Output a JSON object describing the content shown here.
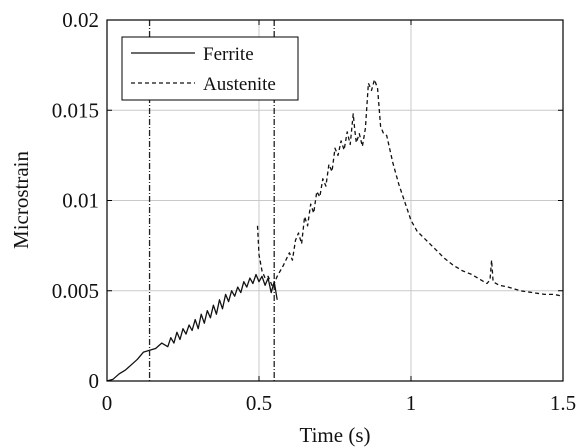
{
  "chart_data": {
    "type": "line",
    "xlabel": "Time (s)",
    "ylabel": "Microstrain",
    "xlim": [
      0,
      1.5
    ],
    "ylim": [
      0,
      0.02
    ],
    "x_ticks": [
      0,
      0.5,
      1,
      1.5
    ],
    "x_tick_labels": [
      "0",
      "0.5",
      "1",
      "1.5"
    ],
    "y_ticks": [
      0,
      0.005,
      0.01,
      0.015,
      0.02
    ],
    "y_tick_labels": [
      "0",
      "0.005",
      "0.01",
      "0.015",
      "0.02"
    ],
    "grid": "vertical at x-ticks, horizontal at y-ticks",
    "legend_position": "top-left",
    "vertical_markers": [
      0.14,
      0.55
    ],
    "series": [
      {
        "name": "Ferrite",
        "style": "solid",
        "points": [
          [
            0.0,
            0.0
          ],
          [
            0.02,
            0.0001
          ],
          [
            0.04,
            0.0004
          ],
          [
            0.06,
            0.0006
          ],
          [
            0.08,
            0.0009
          ],
          [
            0.1,
            0.0012
          ],
          [
            0.12,
            0.0016
          ],
          [
            0.14,
            0.0017
          ],
          [
            0.16,
            0.0018
          ],
          [
            0.18,
            0.0021
          ],
          [
            0.2,
            0.0019
          ],
          [
            0.21,
            0.0024
          ],
          [
            0.22,
            0.0021
          ],
          [
            0.23,
            0.0027
          ],
          [
            0.24,
            0.0023
          ],
          [
            0.25,
            0.0029
          ],
          [
            0.26,
            0.0026
          ],
          [
            0.27,
            0.0031
          ],
          [
            0.28,
            0.0028
          ],
          [
            0.29,
            0.0034
          ],
          [
            0.3,
            0.0029
          ],
          [
            0.31,
            0.0037
          ],
          [
            0.32,
            0.0032
          ],
          [
            0.33,
            0.0039
          ],
          [
            0.34,
            0.0035
          ],
          [
            0.35,
            0.0042
          ],
          [
            0.36,
            0.0037
          ],
          [
            0.37,
            0.0045
          ],
          [
            0.38,
            0.004
          ],
          [
            0.39,
            0.0048
          ],
          [
            0.4,
            0.0044
          ],
          [
            0.41,
            0.005
          ],
          [
            0.42,
            0.0047
          ],
          [
            0.43,
            0.0052
          ],
          [
            0.44,
            0.0049
          ],
          [
            0.45,
            0.0055
          ],
          [
            0.46,
            0.0052
          ],
          [
            0.47,
            0.0057
          ],
          [
            0.48,
            0.0054
          ],
          [
            0.49,
            0.0059
          ],
          [
            0.5,
            0.0055
          ],
          [
            0.51,
            0.0058
          ],
          [
            0.52,
            0.0053
          ],
          [
            0.53,
            0.0057
          ],
          [
            0.54,
            0.0049
          ],
          [
            0.55,
            0.0055
          ],
          [
            0.56,
            0.0045
          ]
        ]
      },
      {
        "name": "Austenite",
        "style": "dashed",
        "points": [
          [
            0.495,
            0.0086
          ],
          [
            0.5,
            0.007
          ],
          [
            0.51,
            0.0061
          ],
          [
            0.52,
            0.0057
          ],
          [
            0.53,
            0.0058
          ],
          [
            0.545,
            0.0052
          ],
          [
            0.56,
            0.0058
          ],
          [
            0.58,
            0.0064
          ],
          [
            0.6,
            0.0071
          ],
          [
            0.61,
            0.0067
          ],
          [
            0.62,
            0.0078
          ],
          [
            0.63,
            0.0082
          ],
          [
            0.64,
            0.0076
          ],
          [
            0.65,
            0.0091
          ],
          [
            0.66,
            0.0086
          ],
          [
            0.67,
            0.0098
          ],
          [
            0.68,
            0.0093
          ],
          [
            0.69,
            0.0105
          ],
          [
            0.7,
            0.0102
          ],
          [
            0.71,
            0.0112
          ],
          [
            0.72,
            0.0108
          ],
          [
            0.73,
            0.012
          ],
          [
            0.74,
            0.0116
          ],
          [
            0.75,
            0.0129
          ],
          [
            0.76,
            0.0125
          ],
          [
            0.77,
            0.0133
          ],
          [
            0.78,
            0.0128
          ],
          [
            0.79,
            0.0138
          ],
          [
            0.8,
            0.0131
          ],
          [
            0.81,
            0.0148
          ],
          [
            0.815,
            0.0139
          ],
          [
            0.82,
            0.0132
          ],
          [
            0.83,
            0.0137
          ],
          [
            0.84,
            0.013
          ],
          [
            0.85,
            0.014
          ],
          [
            0.86,
            0.0165
          ],
          [
            0.87,
            0.0161
          ],
          [
            0.88,
            0.0167
          ],
          [
            0.89,
            0.0162
          ],
          [
            0.9,
            0.0141
          ],
          [
            0.91,
            0.0137
          ],
          [
            0.92,
            0.0136
          ],
          [
            0.94,
            0.0121
          ],
          [
            0.96,
            0.0109
          ],
          [
            0.98,
            0.0099
          ],
          [
            1.0,
            0.0089
          ],
          [
            1.02,
            0.0083
          ],
          [
            1.05,
            0.0078
          ],
          [
            1.08,
            0.0073
          ],
          [
            1.11,
            0.0068
          ],
          [
            1.14,
            0.0064
          ],
          [
            1.17,
            0.0061
          ],
          [
            1.2,
            0.0059
          ],
          [
            1.23,
            0.0056
          ],
          [
            1.25,
            0.0054
          ],
          [
            1.26,
            0.0056
          ],
          [
            1.265,
            0.0067
          ],
          [
            1.27,
            0.0055
          ],
          [
            1.29,
            0.0053
          ],
          [
            1.32,
            0.0052
          ],
          [
            1.36,
            0.005
          ],
          [
            1.4,
            0.0049
          ],
          [
            1.44,
            0.0048
          ],
          [
            1.47,
            0.0048
          ],
          [
            1.5,
            0.0047
          ]
        ]
      }
    ]
  },
  "colors": {
    "line": "#111111",
    "grid": "#c9c9c9",
    "marker": "#222222",
    "axis": "#000000",
    "background": "#ffffff"
  }
}
